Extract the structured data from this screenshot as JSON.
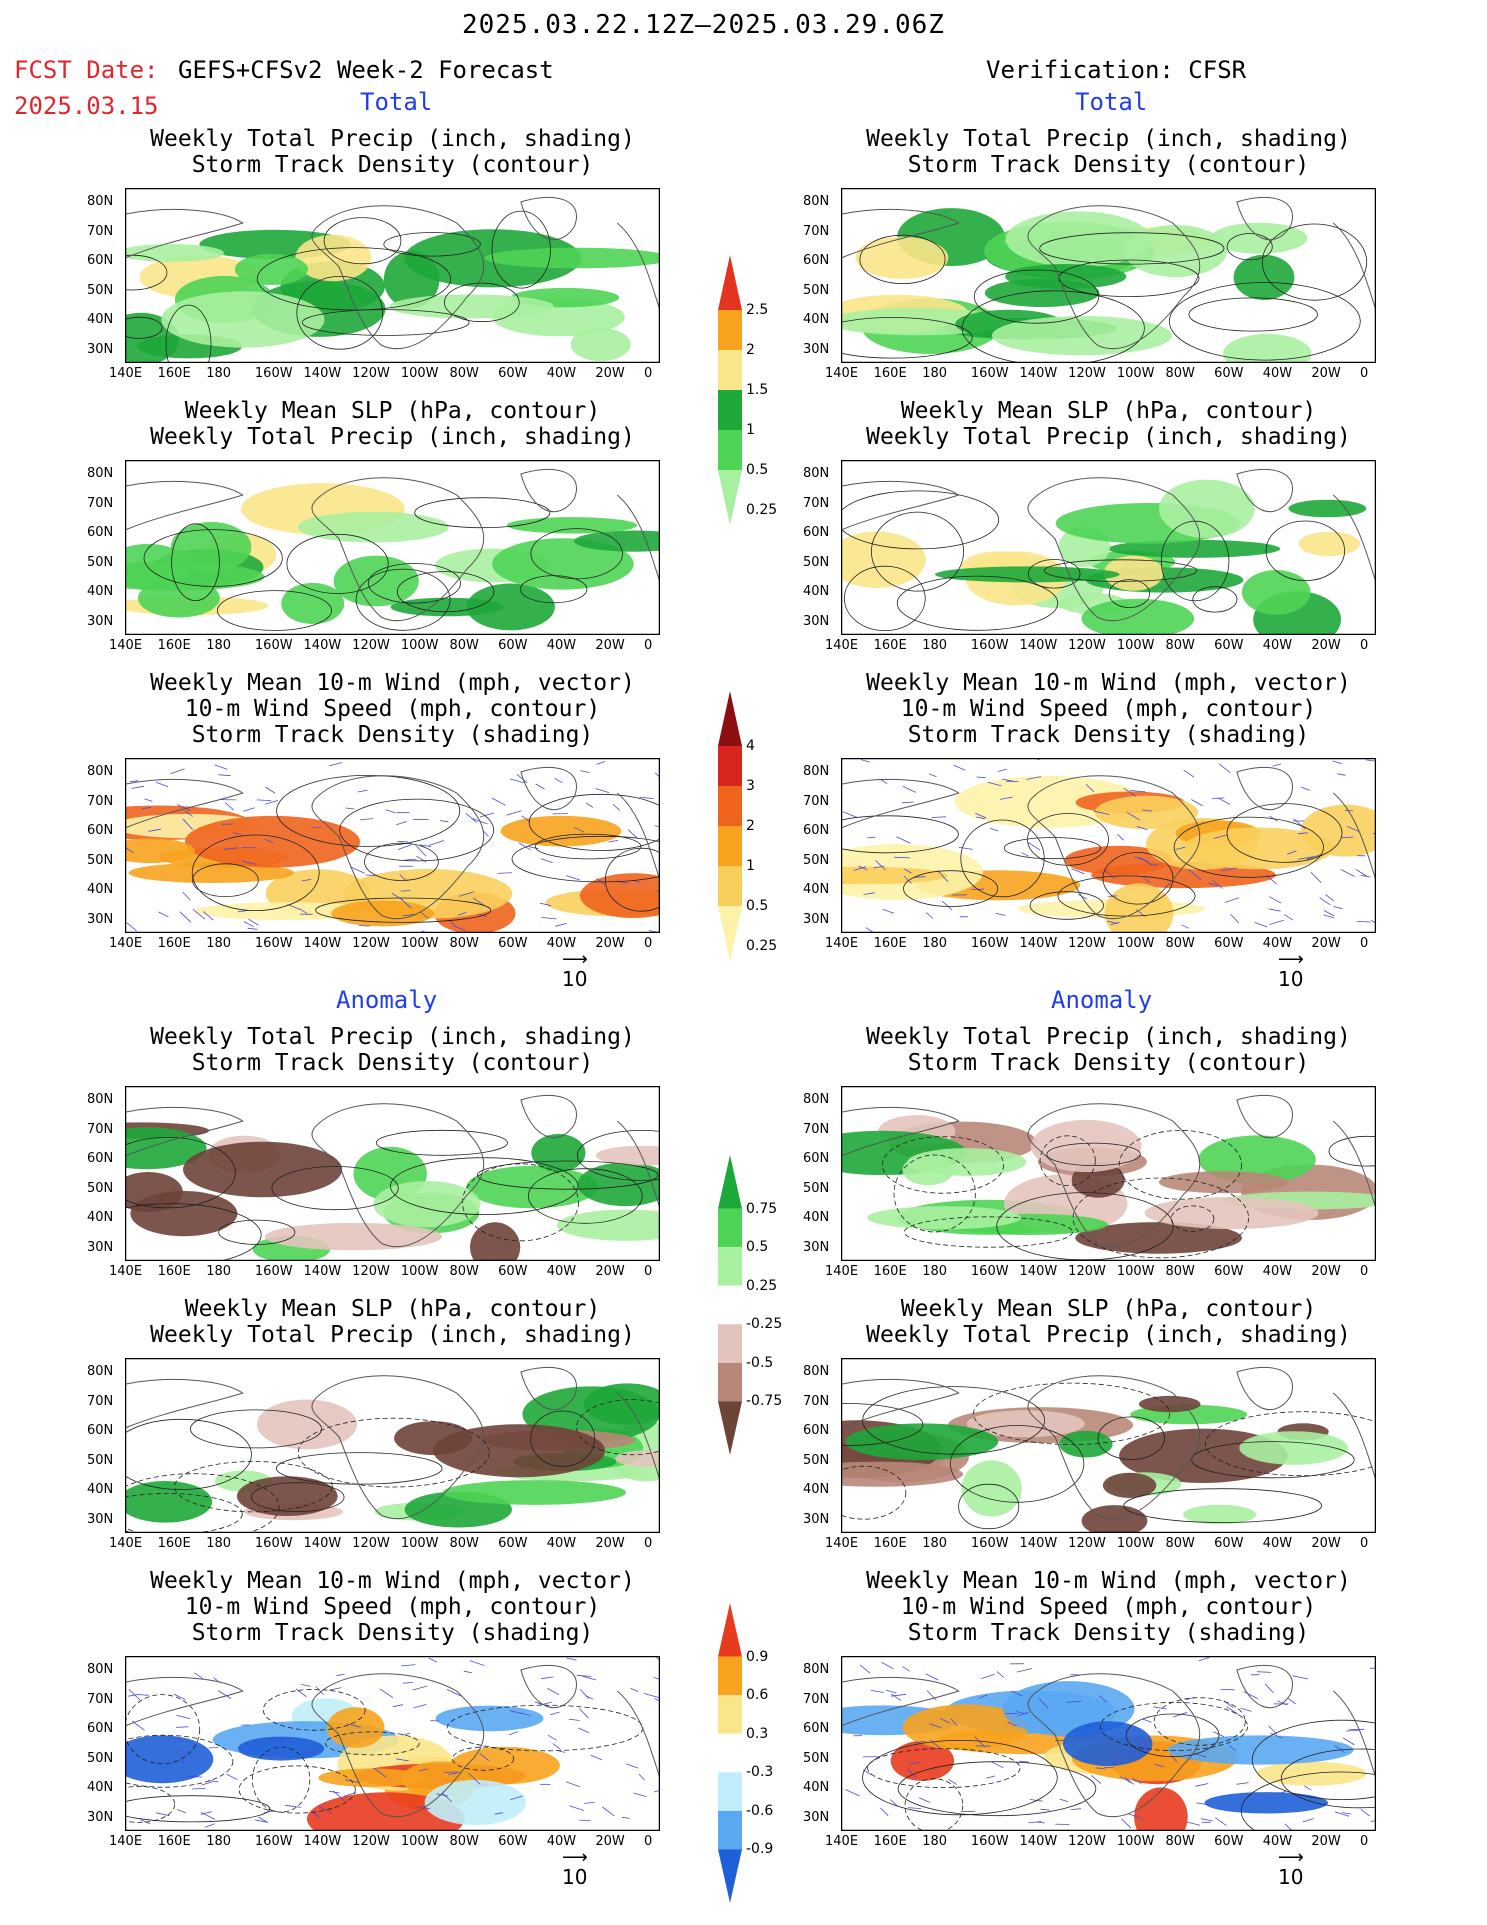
{
  "header": {
    "title": "2025.03.22.12Z—2025.03.29.06Z",
    "fcst_label": "FCST Date:",
    "fcst_model": "GEFS+CFSv2 Week-2 Forecast",
    "fcst_date": "2025.03.15",
    "verification": "Verification: CFSR"
  },
  "sections": {
    "total": "Total",
    "anomaly": "Anomaly"
  },
  "panel_titles": {
    "precip_storm": [
      "Weekly Total Precip (inch, shading)",
      "Storm Track Density (contour)"
    ],
    "slp_precip": [
      "Weekly Mean SLP (hPa, contour)",
      "Weekly Total Precip (inch, shading)"
    ],
    "wind_storm": [
      "Weekly Mean 10-m Wind (mph, vector)",
      "10-m Wind Speed (mph, contour)",
      "Storm Track Density (shading)"
    ]
  },
  "axes": {
    "lat_labels": [
      "80N",
      "70N",
      "60N",
      "50N",
      "40N",
      "30N"
    ],
    "lon_labels": [
      "140E",
      "160E",
      "180",
      "160W",
      "140W",
      "120W",
      "100W",
      "80W",
      "60W",
      "40W",
      "20W",
      "0"
    ]
  },
  "vector_ref": "10",
  "colorbars": {
    "precip_total": {
      "labels": [
        "2.5",
        "2",
        "1.5",
        "1",
        "0.5",
        "0.25"
      ],
      "colors": [
        "#e3341f",
        "#f7a31e",
        "#f9e58a",
        "#1ea83a",
        "#4ed454",
        "#a8f0a0"
      ]
    },
    "storm_total": {
      "labels": [
        "4",
        "3",
        "2",
        "1",
        "0.5",
        "0.25"
      ],
      "colors": [
        "#8e0f12",
        "#d7261e",
        "#f0641e",
        "#f7a31e",
        "#f9cf5c",
        "#fdf3a8"
      ]
    },
    "precip_anom": {
      "labels": [
        "0.75",
        "0.5",
        "0.25",
        "-0.25",
        "-0.5",
        "-0.75"
      ],
      "colors": [
        "#1ea83a",
        "#4ed454",
        "#a8f0a0",
        "#ffffff",
        "#e3c4bc",
        "#b88778",
        "#6e4338"
      ]
    },
    "storm_anom": {
      "labels": [
        "0.9",
        "0.6",
        "0.3",
        "-0.3",
        "-0.6",
        "-0.9"
      ],
      "colors": [
        "#e83b1e",
        "#f7a31e",
        "#f9e58a",
        "#ffffff",
        "#bfeefa",
        "#5aa8f2",
        "#1f5fd8"
      ]
    }
  },
  "colors": {
    "land": "#555555",
    "contour": "#222222",
    "vector": "#4b4bd8"
  }
}
